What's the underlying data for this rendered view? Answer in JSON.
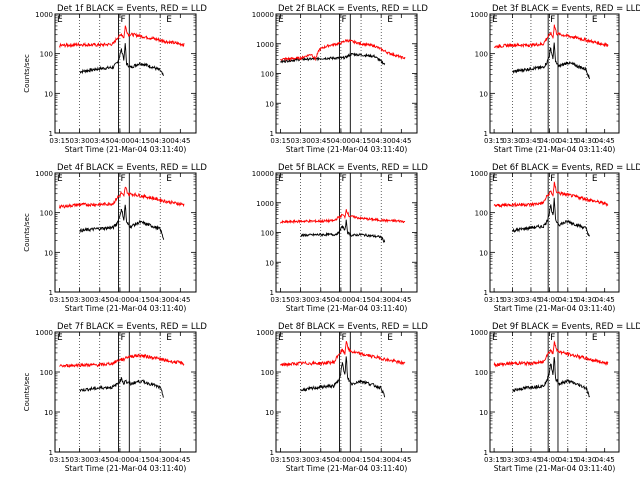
{
  "figure": {
    "type": "multi-panel line plot grid",
    "rows": 3,
    "cols": 3,
    "background": "#ffffff",
    "series_colors": {
      "events": "#000000",
      "lld": "#ff0000"
    }
  },
  "chart_data": [
    {
      "type": "line",
      "title": "Det 1f BLACK = Events, RED = LLD",
      "ylabel": "Counts/sec",
      "xlabel": "Start Time (21-Mar-04 03:11:40)",
      "ylog": true,
      "ylim": [
        1,
        1000
      ],
      "yticks": [
        "1",
        "10",
        "100",
        "1000"
      ],
      "xticks": [
        "03:15",
        "03:30",
        "03:45",
        "04:00",
        "04:15",
        "04:30",
        "04:45"
      ],
      "interval_letters": [
        "E",
        "F",
        "E"
      ],
      "series": [
        {
          "x": [
            "03:30",
            "03:45",
            "03:55",
            "03:58",
            "04:00",
            "04:01",
            "04:02",
            "04:03",
            "04:04",
            "04:05",
            "04:08",
            "04:15",
            "04:25",
            "04:30",
            "04:33"
          ],
          "values": [
            35,
            42,
            45,
            60,
            90,
            130,
            100,
            70,
            180,
            55,
            45,
            58,
            45,
            38,
            25
          ]
        },
        {
          "x": [
            "03:15",
            "03:30",
            "03:45",
            "03:55",
            "03:58",
            "04:00",
            "04:01",
            "04:03",
            "04:04",
            "04:06",
            "04:10",
            "04:15",
            "04:25",
            "04:35",
            "04:45",
            "04:48"
          ],
          "values": [
            160,
            170,
            165,
            175,
            250,
            280,
            320,
            250,
            500,
            310,
            300,
            280,
            240,
            200,
            175,
            170
          ]
        }
      ]
    },
    {
      "type": "line",
      "title": "Det 2f BLACK = Events, RED = LLD",
      "ylabel": "",
      "xlabel": "Start Time (21-Mar-04 03:11:40)",
      "ylog": true,
      "ylim": [
        1,
        10000
      ],
      "yticks": [
        "1",
        "10",
        "100",
        "1000",
        "10000"
      ],
      "xticks": [
        "03:15",
        "03:30",
        "03:45",
        "04:00",
        "04:15",
        "04:30",
        "04:45"
      ],
      "interval_letters": [
        "E",
        "F",
        "E"
      ],
      "series": [
        {
          "x": [
            "03:15",
            "03:30",
            "03:40",
            "03:45",
            "03:55",
            "04:00",
            "04:03",
            "04:08",
            "04:15",
            "04:25",
            "04:33"
          ],
          "values": [
            250,
            300,
            310,
            320,
            330,
            330,
            340,
            450,
            420,
            380,
            200
          ]
        },
        {
          "x": [
            "03:15",
            "03:30",
            "03:38",
            "03:41",
            "03:44",
            "03:50",
            "04:00",
            "04:04",
            "04:08",
            "04:15",
            "04:25",
            "04:35",
            "04:45",
            "04:48"
          ],
          "values": [
            300,
            330,
            450,
            300,
            650,
            850,
            1050,
            1300,
            1200,
            1000,
            850,
            500,
            350,
            330
          ]
        }
      ]
    },
    {
      "type": "line",
      "title": "Det 3f BLACK = Events, RED = LLD",
      "ylabel": "",
      "xlabel": "Start Time (21-Mar-04 03:11:40)",
      "ylog": true,
      "ylim": [
        1,
        1000
      ],
      "yticks": [
        "1",
        "10",
        "100",
        "1000"
      ],
      "xticks": [
        "03:15",
        "03:30",
        "03:45",
        "04:00",
        "04:15",
        "04:30",
        "04:45"
      ],
      "interval_letters": [
        "E",
        "F",
        "E"
      ],
      "series": [
        {
          "x": [
            "03:30",
            "03:45",
            "03:55",
            "03:58",
            "04:00",
            "04:01",
            "04:02",
            "04:03",
            "04:04",
            "04:05",
            "04:08",
            "04:15",
            "04:25",
            "04:30",
            "04:33"
          ],
          "values": [
            35,
            42,
            45,
            60,
            90,
            140,
            100,
            75,
            200,
            60,
            48,
            60,
            46,
            40,
            22
          ]
        },
        {
          "x": [
            "03:15",
            "03:30",
            "03:45",
            "03:55",
            "03:58",
            "04:00",
            "04:01",
            "04:03",
            "04:04",
            "04:06",
            "04:10",
            "04:15",
            "04:25",
            "04:35",
            "04:45",
            "04:48"
          ],
          "values": [
            150,
            165,
            165,
            175,
            250,
            290,
            330,
            260,
            520,
            320,
            300,
            280,
            240,
            200,
            170,
            165
          ]
        }
      ]
    },
    {
      "type": "line",
      "title": "Det 4f BLACK = Events, RED = LLD",
      "ylabel": "Counts/sec",
      "xlabel": "Start Time (21-Mar-04 03:11:40)",
      "ylog": true,
      "ylim": [
        1,
        1000
      ],
      "yticks": [
        "1",
        "10",
        "100",
        "1000"
      ],
      "xticks": [
        "03:15",
        "03:30",
        "03:45",
        "04:00",
        "04:15",
        "04:30",
        "04:45"
      ],
      "interval_letters": [
        "E",
        "F",
        "E"
      ],
      "series": [
        {
          "x": [
            "03:30",
            "03:45",
            "03:55",
            "03:58",
            "04:00",
            "04:01",
            "04:02",
            "04:03",
            "04:04",
            "04:05",
            "04:08",
            "04:15",
            "04:25",
            "04:30",
            "04:33"
          ],
          "values": [
            35,
            40,
            42,
            55,
            85,
            120,
            95,
            65,
            170,
            55,
            45,
            58,
            45,
            38,
            20
          ]
        },
        {
          "x": [
            "03:15",
            "03:30",
            "03:45",
            "03:55",
            "03:58",
            "04:00",
            "04:01",
            "04:03",
            "04:04",
            "04:06",
            "04:10",
            "04:15",
            "04:25",
            "04:35",
            "04:45",
            "04:48"
          ],
          "values": [
            140,
            160,
            160,
            170,
            240,
            270,
            320,
            250,
            450,
            300,
            290,
            270,
            230,
            190,
            165,
            160
          ]
        }
      ]
    },
    {
      "type": "line",
      "title": "Det 5f BLACK = Events, RED = LLD",
      "ylabel": "",
      "xlabel": "Start Time (21-Mar-04 03:11:40)",
      "ylog": true,
      "ylim": [
        1,
        10000
      ],
      "yticks": [
        "1",
        "10",
        "100",
        "1000",
        "10000"
      ],
      "xticks": [
        "03:15",
        "03:30",
        "03:45",
        "04:00",
        "04:15",
        "04:30",
        "04:45"
      ],
      "interval_letters": [
        "E",
        "F",
        "E"
      ],
      "series": [
        {
          "x": [
            "03:30",
            "03:45",
            "03:55",
            "03:58",
            "04:00",
            "04:01",
            "04:02",
            "04:03",
            "04:04",
            "04:05",
            "04:08",
            "04:15",
            "04:25",
            "04:30",
            "04:33"
          ],
          "values": [
            80,
            85,
            85,
            95,
            130,
            170,
            140,
            110,
            260,
            100,
            80,
            85,
            75,
            70,
            45
          ]
        },
        {
          "x": [
            "03:15",
            "03:30",
            "03:45",
            "03:55",
            "03:58",
            "04:00",
            "04:01",
            "04:03",
            "04:04",
            "04:06",
            "04:10",
            "04:15",
            "04:25",
            "04:35",
            "04:45",
            "04:48"
          ],
          "values": [
            220,
            240,
            240,
            250,
            320,
            350,
            400,
            330,
            600,
            360,
            330,
            300,
            270,
            250,
            240,
            230
          ]
        }
      ]
    },
    {
      "type": "line",
      "title": "Det 6f BLACK = Events, RED = LLD",
      "ylabel": "",
      "xlabel": "Start Time (21-Mar-04 03:11:40)",
      "ylog": true,
      "ylim": [
        1,
        1000
      ],
      "yticks": [
        "1",
        "10",
        "100",
        "1000"
      ],
      "xticks": [
        "03:15",
        "03:30",
        "03:45",
        "04:00",
        "04:15",
        "04:30",
        "04:45"
      ],
      "interval_letters": [
        "E",
        "F",
        "E"
      ],
      "series": [
        {
          "x": [
            "03:30",
            "03:45",
            "03:55",
            "03:58",
            "04:00",
            "04:01",
            "04:02",
            "04:03",
            "04:04",
            "04:05",
            "04:08",
            "04:15",
            "04:25",
            "04:30",
            "04:33"
          ],
          "values": [
            35,
            42,
            45,
            60,
            100,
            160,
            110,
            80,
            230,
            65,
            50,
            60,
            46,
            40,
            22
          ]
        },
        {
          "x": [
            "03:15",
            "03:30",
            "03:45",
            "03:55",
            "03:58",
            "04:00",
            "04:01",
            "04:03",
            "04:04",
            "04:06",
            "04:10",
            "04:15",
            "04:25",
            "04:35",
            "04:45",
            "04:48"
          ],
          "values": [
            150,
            160,
            160,
            175,
            260,
            300,
            350,
            270,
            550,
            330,
            300,
            280,
            240,
            200,
            170,
            165
          ]
        }
      ]
    },
    {
      "type": "line",
      "title": "Det 7f BLACK = Events, RED = LLD",
      "ylabel": "Counts/sec",
      "xlabel": "Start Time (21-Mar-04 03:11:40)",
      "ylog": true,
      "ylim": [
        1,
        1000
      ],
      "yticks": [
        "1",
        "10",
        "100",
        "1000"
      ],
      "xticks": [
        "03:15",
        "03:30",
        "03:45",
        "04:00",
        "04:15",
        "04:30",
        "04:45"
      ],
      "interval_letters": [
        "E",
        "F",
        "E"
      ],
      "series": [
        {
          "x": [
            "03:30",
            "03:45",
            "03:55",
            "03:58",
            "04:00",
            "04:01",
            "04:02",
            "04:03",
            "04:04",
            "04:05",
            "04:08",
            "04:15",
            "04:25",
            "04:30",
            "04:33"
          ],
          "values": [
            35,
            40,
            42,
            50,
            60,
            70,
            60,
            50,
            65,
            55,
            50,
            60,
            48,
            40,
            22
          ]
        },
        {
          "x": [
            "03:15",
            "03:30",
            "03:45",
            "03:55",
            "03:58",
            "04:00",
            "04:01",
            "04:03",
            "04:04",
            "04:06",
            "04:10",
            "04:15",
            "04:25",
            "04:35",
            "04:45",
            "04:48"
          ],
          "values": [
            140,
            150,
            150,
            165,
            190,
            200,
            210,
            200,
            230,
            240,
            250,
            260,
            230,
            190,
            170,
            160
          ]
        }
      ]
    },
    {
      "type": "line",
      "title": "Det 8f BLACK = Events, RED = LLD",
      "ylabel": "",
      "xlabel": "Start Time (21-Mar-04 03:11:40)",
      "ylog": true,
      "ylim": [
        1,
        1000
      ],
      "yticks": [
        "1",
        "10",
        "100",
        "1000"
      ],
      "xticks": [
        "03:15",
        "03:30",
        "03:45",
        "04:00",
        "04:15",
        "04:30",
        "04:45"
      ],
      "interval_letters": [
        "E",
        "F",
        "E"
      ],
      "series": [
        {
          "x": [
            "03:30",
            "03:45",
            "03:55",
            "03:58",
            "04:00",
            "04:01",
            "04:02",
            "04:03",
            "04:04",
            "04:05",
            "04:08",
            "04:15",
            "04:25",
            "04:30",
            "04:33"
          ],
          "values": [
            35,
            42,
            45,
            60,
            100,
            170,
            120,
            80,
            250,
            70,
            50,
            60,
            46,
            40,
            22
          ]
        },
        {
          "x": [
            "03:15",
            "03:30",
            "03:45",
            "03:55",
            "03:58",
            "04:00",
            "04:01",
            "04:03",
            "04:04",
            "04:06",
            "04:10",
            "04:15",
            "04:25",
            "04:35",
            "04:45",
            "04:48"
          ],
          "values": [
            150,
            165,
            165,
            175,
            270,
            310,
            360,
            280,
            620,
            340,
            310,
            280,
            240,
            200,
            170,
            165
          ]
        }
      ]
    },
    {
      "type": "line",
      "title": "Det 9f BLACK = Events, RED = LLD",
      "ylabel": "",
      "xlabel": "Start Time (21-Mar-04 03:11:40)",
      "ylog": true,
      "ylim": [
        1,
        1000
      ],
      "yticks": [
        "1",
        "10",
        "100",
        "1000"
      ],
      "xticks": [
        "03:15",
        "03:30",
        "03:45",
        "04:00",
        "04:15",
        "04:30",
        "04:45"
      ],
      "interval_letters": [
        "E",
        "F",
        "E"
      ],
      "series": [
        {
          "x": [
            "03:30",
            "03:45",
            "03:55",
            "03:58",
            "04:00",
            "04:01",
            "04:02",
            "04:03",
            "04:04",
            "04:05",
            "04:08",
            "04:15",
            "04:25",
            "04:30",
            "04:33"
          ],
          "values": [
            35,
            42,
            45,
            60,
            100,
            170,
            120,
            80,
            260,
            70,
            50,
            60,
            46,
            40,
            22
          ]
        },
        {
          "x": [
            "03:15",
            "03:30",
            "03:45",
            "03:55",
            "03:58",
            "04:00",
            "04:01",
            "04:03",
            "04:04",
            "04:06",
            "04:10",
            "04:15",
            "04:25",
            "04:35",
            "04:45",
            "04:48"
          ],
          "values": [
            150,
            165,
            165,
            175,
            270,
            310,
            360,
            280,
            620,
            340,
            310,
            280,
            240,
            200,
            170,
            165
          ]
        }
      ]
    }
  ]
}
